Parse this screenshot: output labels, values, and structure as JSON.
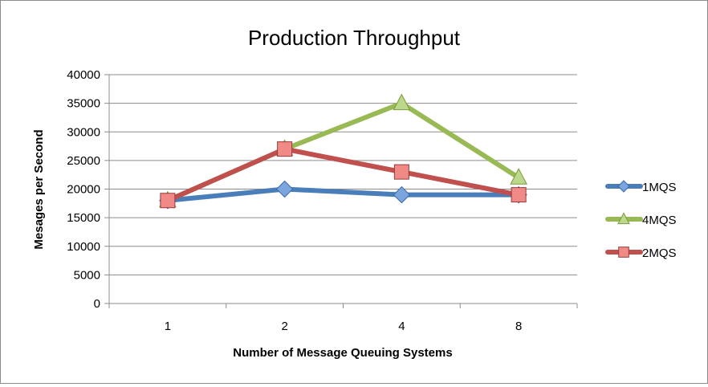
{
  "chart_data": {
    "type": "line",
    "title": "Production Throughput",
    "xlabel": "Number of Message Queuing Systems",
    "ylabel": "Mesages per Second",
    "categories": [
      "1",
      "2",
      "4",
      "8"
    ],
    "ylim": [
      0,
      40000
    ],
    "yticks": [
      0,
      5000,
      10000,
      15000,
      20000,
      25000,
      30000,
      35000,
      40000
    ],
    "grid": true,
    "legend_position": "right",
    "series": [
      {
        "name": "1MQS",
        "values": [
          18000,
          20000,
          19000,
          19000
        ],
        "color": "#4a7ebb",
        "marker": "diamond"
      },
      {
        "name": "4MQS",
        "values": [
          18000,
          27000,
          35000,
          22000
        ],
        "color": "#98b954",
        "marker": "triangle"
      },
      {
        "name": "2MQS",
        "values": [
          18000,
          27000,
          23000,
          19000
        ],
        "color": "#c0504d",
        "marker": "square"
      }
    ]
  }
}
